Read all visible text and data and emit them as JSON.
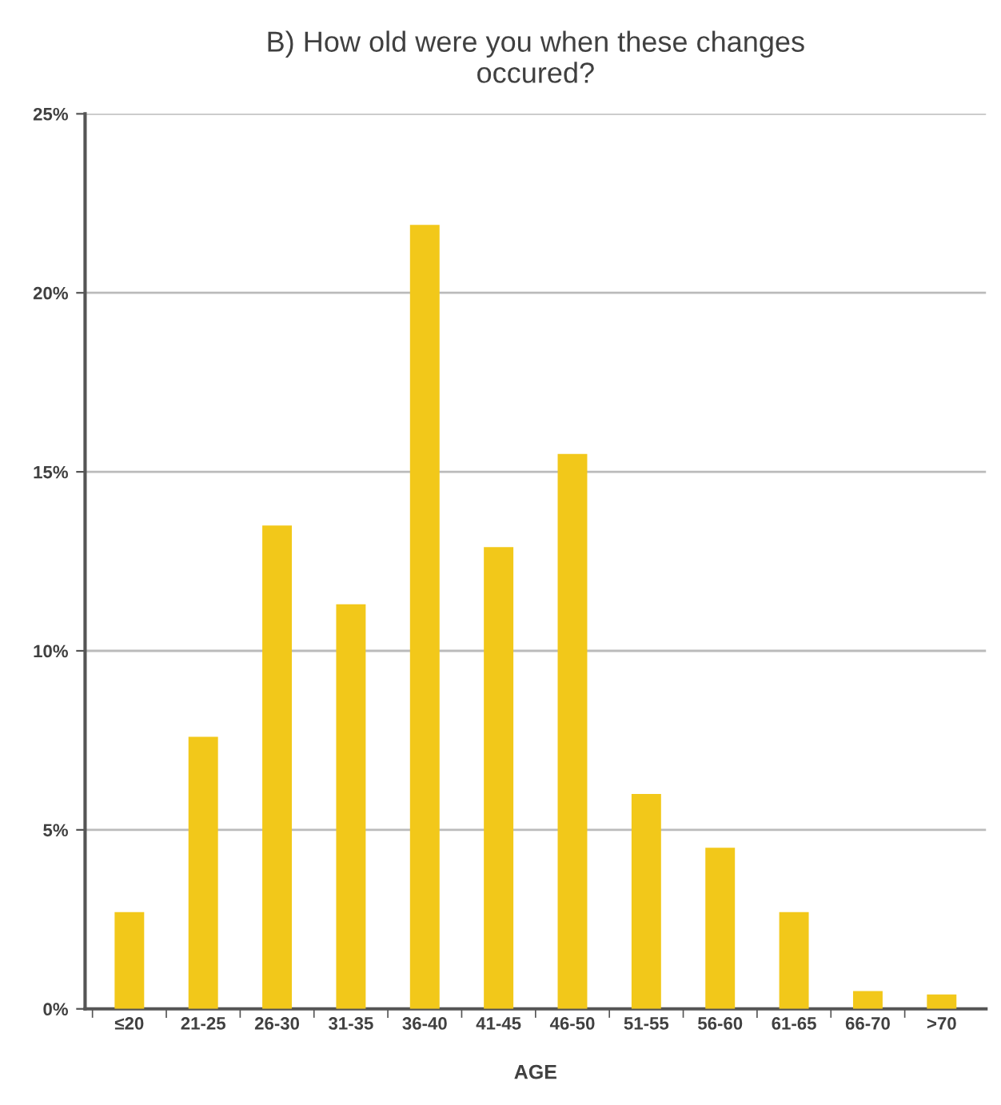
{
  "chart_data": {
    "type": "bar",
    "title": "B) How old were you when these changes\noccured?",
    "xlabel": "AGE",
    "categories": [
      "≤20",
      "21-25",
      "26-30",
      "31-35",
      "36-40",
      "41-45",
      "46-50",
      "51-55",
      "56-60",
      "61-65",
      "66-70",
      ">70"
    ],
    "values": [
      2.7,
      7.6,
      13.5,
      11.3,
      21.9,
      12.9,
      15.5,
      6.0,
      4.5,
      2.7,
      0.5,
      0.4
    ],
    "color": "#f2c81a",
    "ylim": [
      0,
      25
    ],
    "yticks": [
      {
        "value": 0,
        "label": "0%"
      },
      {
        "value": 5,
        "label": "5%"
      },
      {
        "value": 10,
        "label": "10%"
      },
      {
        "value": 15,
        "label": "15%"
      },
      {
        "value": 20,
        "label": "20%"
      },
      {
        "value": 25,
        "label": "25%"
      }
    ],
    "grid": "y"
  }
}
